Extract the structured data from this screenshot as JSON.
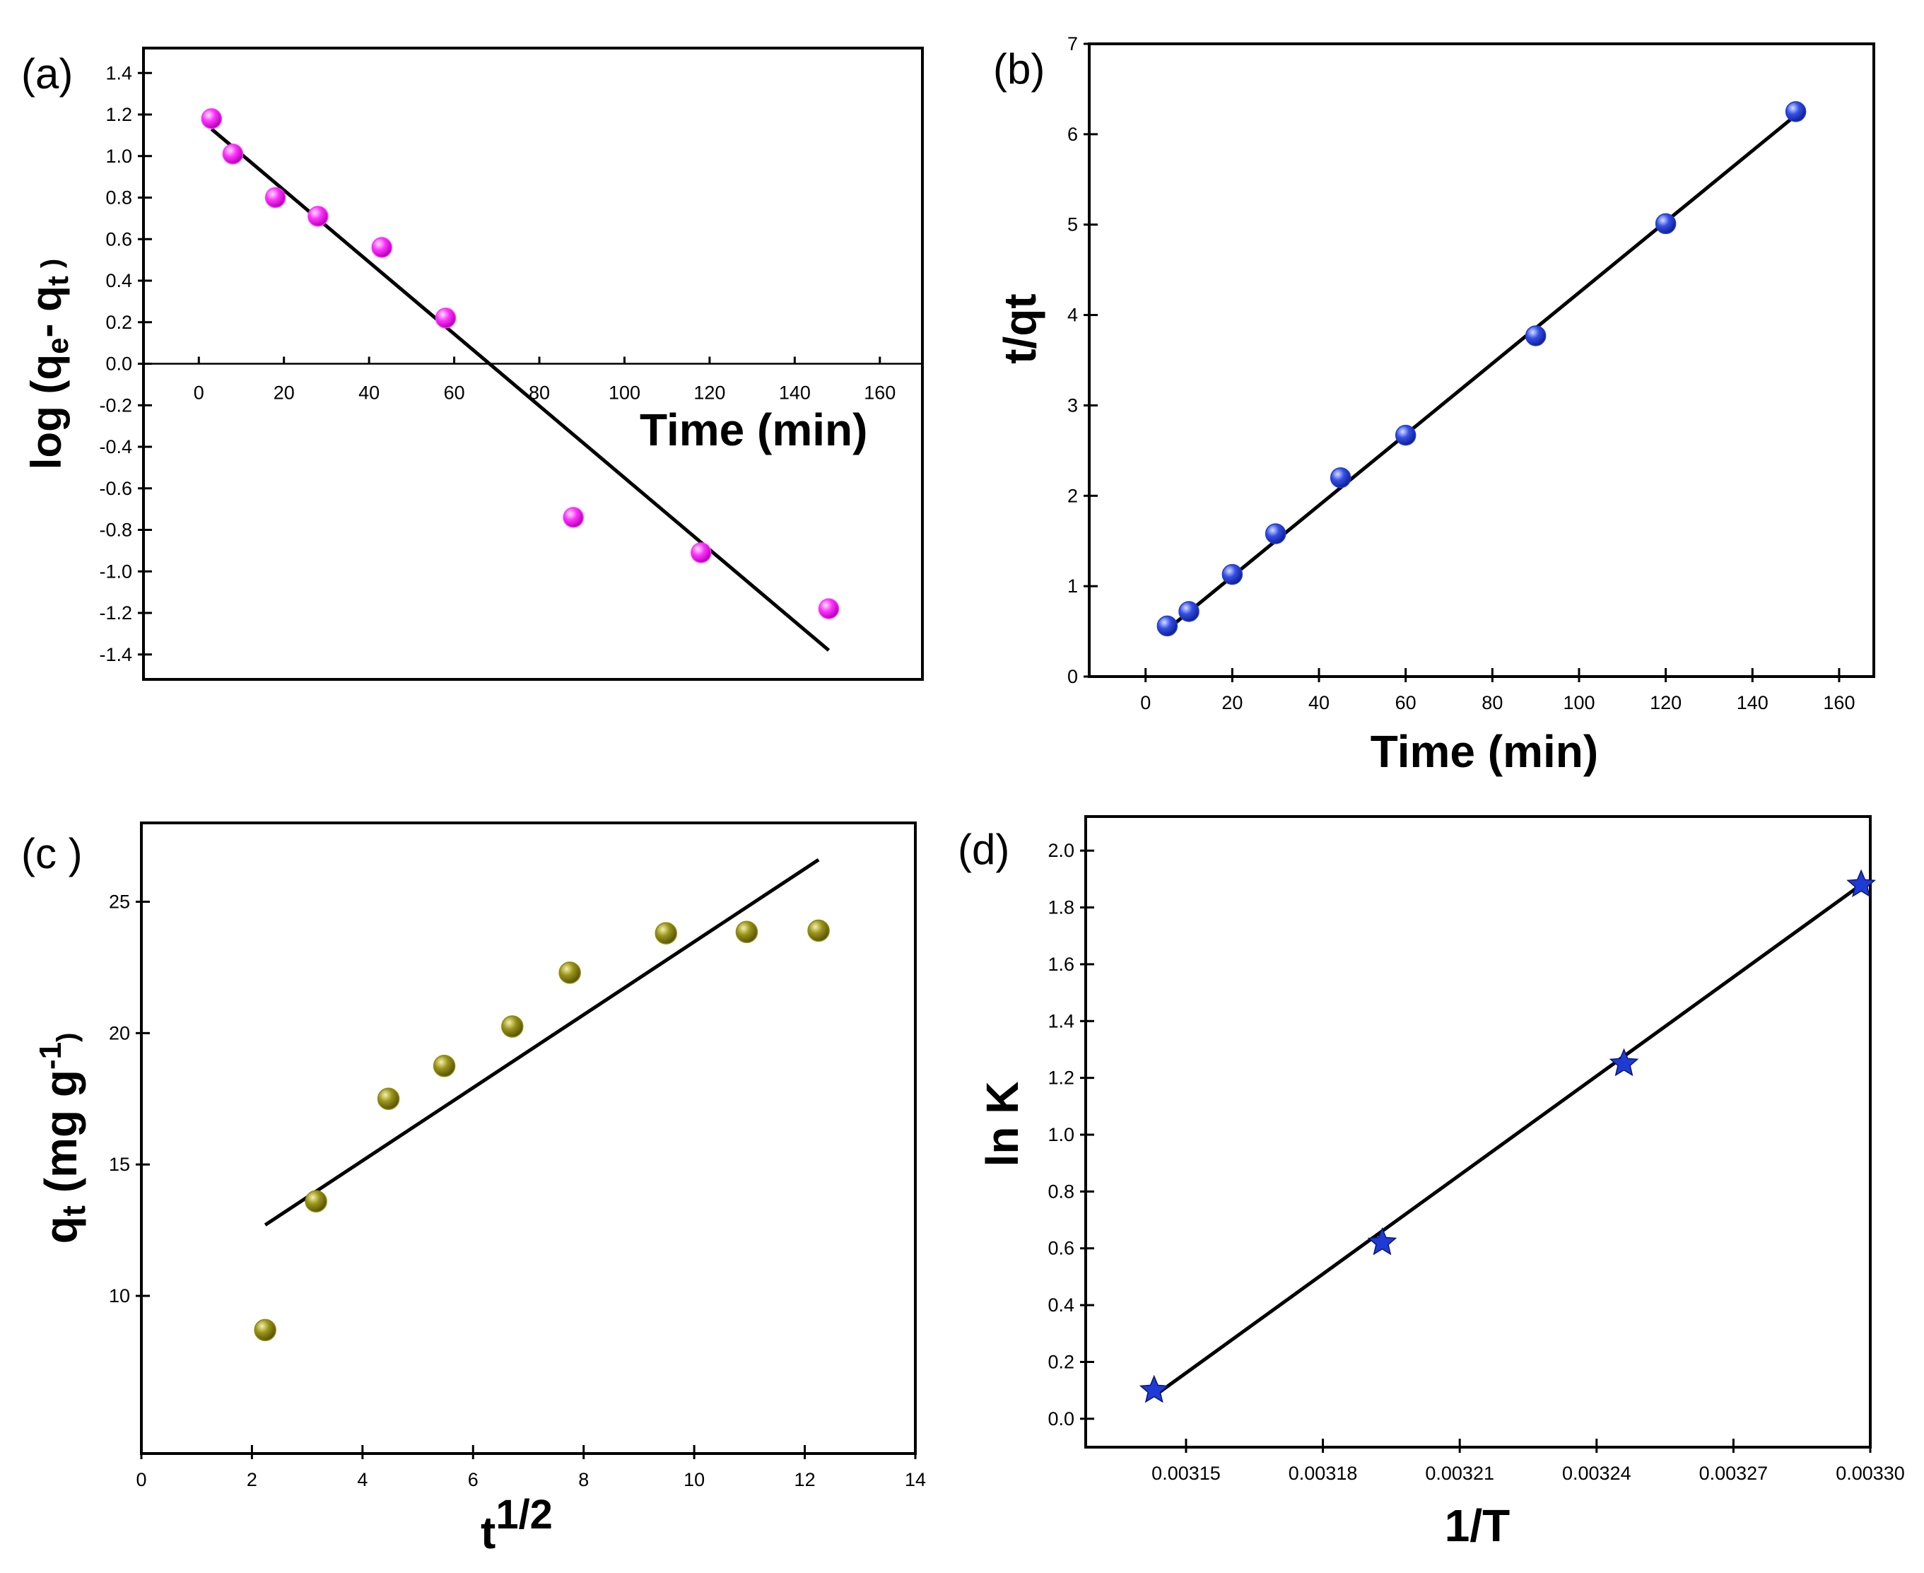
{
  "chart_data": [
    {
      "panel": "(a)",
      "type": "scatter",
      "title": "",
      "xlabel": "Time (min)",
      "ylabel_parts": {
        "prefix": "log (",
        "sub1": "q",
        "sub1_s": "e",
        "mid": "- ",
        "sub2": "q",
        "sub2_s": "t",
        "suffix": " )"
      },
      "xlim": [
        -13,
        170
      ],
      "ylim": [
        -1.52,
        1.52
      ],
      "xticks": [
        0,
        20,
        40,
        60,
        80,
        100,
        120,
        140,
        160
      ],
      "yticks": [
        -1.4,
        -1.2,
        -1.0,
        -0.8,
        -0.6,
        -0.4,
        -0.2,
        0.0,
        0.2,
        0.4,
        0.6,
        0.8,
        1.0,
        1.2,
        1.4
      ],
      "ytick_labels": [
        "-1.4",
        "-1.2",
        "-1.0",
        "-0.8",
        "-0.6",
        "-0.4",
        "-0.2",
        "0.0",
        "0.2",
        "0.4",
        "0.6",
        "0.8",
        "1.0",
        "1.2",
        "1.4"
      ],
      "marker_color": "#ff33ff",
      "marker": "circle",
      "points": [
        [
          3,
          1.18
        ],
        [
          8,
          1.01
        ],
        [
          18,
          0.8
        ],
        [
          28,
          0.71
        ],
        [
          43,
          0.56
        ],
        [
          58,
          0.22
        ],
        [
          88,
          -0.74
        ],
        [
          118,
          -0.91
        ],
        [
          148,
          -1.18
        ]
      ],
      "fit": [
        [
          3,
          1.13
        ],
        [
          148,
          -1.38
        ]
      ]
    },
    {
      "panel": "(b)",
      "type": "scatter",
      "title": "",
      "xlabel": "Time (min)",
      "ylabel": "t/qt",
      "xlim": [
        -13,
        168
      ],
      "ylim": [
        0,
        7
      ],
      "xticks": [
        0,
        20,
        40,
        60,
        80,
        100,
        120,
        140,
        160
      ],
      "yticks": [
        0,
        1,
        2,
        3,
        4,
        5,
        6,
        7
      ],
      "ytick_labels": [
        "0",
        "1",
        "2",
        "3",
        "4",
        "5",
        "6",
        "7"
      ],
      "marker_color": "#1f3bd6",
      "marker": "circle",
      "points": [
        [
          5,
          0.56
        ],
        [
          10,
          0.72
        ],
        [
          20,
          1.13
        ],
        [
          30,
          1.58
        ],
        [
          45,
          2.2
        ],
        [
          60,
          2.67
        ],
        [
          90,
          3.77
        ],
        [
          120,
          5.01
        ],
        [
          150,
          6.25
        ]
      ],
      "fit": [
        [
          5,
          0.52
        ],
        [
          150,
          6.21
        ]
      ]
    },
    {
      "panel": "(c )",
      "type": "scatter",
      "title": "",
      "xlabel_base": "t",
      "xlabel_sup": "1/2",
      "ylabel_parts": {
        "base": "q",
        "sub": "t",
        "paren": " (mg g",
        "sup": "-1",
        "close": ")"
      },
      "xlim": [
        0,
        14
      ],
      "ylim": [
        4,
        28
      ],
      "xticks": [
        0,
        2,
        4,
        6,
        8,
        10,
        12,
        14
      ],
      "yticks": [
        10,
        15,
        20,
        25
      ],
      "ytick_labels": [
        "10",
        "15",
        "20",
        "25"
      ],
      "marker_color": "#8f8a10",
      "marker": "circle",
      "points": [
        [
          2.24,
          8.7
        ],
        [
          3.16,
          13.6
        ],
        [
          4.47,
          17.5
        ],
        [
          5.48,
          18.75
        ],
        [
          6.71,
          20.25
        ],
        [
          7.75,
          22.3
        ],
        [
          9.49,
          23.8
        ],
        [
          10.95,
          23.85
        ],
        [
          12.25,
          23.9
        ]
      ],
      "fit": [
        [
          2.24,
          12.7
        ],
        [
          12.25,
          26.6
        ]
      ]
    },
    {
      "panel": "(d)",
      "type": "scatter",
      "title": "",
      "xlabel": "1/T",
      "ylabel": "ln K",
      "xlim": [
        0.003128,
        0.0033
      ],
      "ylim": [
        -0.1,
        2.12
      ],
      "xticks": [
        0.00315,
        0.00318,
        0.00321,
        0.00324,
        0.00327,
        0.0033
      ],
      "xtick_labels": [
        "0.00315",
        "0.00318",
        "0.00321",
        "0.00324",
        "0.00327",
        "0.00330"
      ],
      "yticks": [
        0.0,
        0.2,
        0.4,
        0.6,
        0.8,
        1.0,
        1.2,
        1.4,
        1.6,
        1.8,
        2.0
      ],
      "ytick_labels": [
        "0.0",
        "0.2",
        "0.4",
        "0.6",
        "0.8",
        "1.0",
        "1.2",
        "1.4",
        "1.6",
        "1.8",
        "2.0"
      ],
      "marker_color": "#1f3bd6",
      "marker": "star",
      "points": [
        [
          0.003143,
          0.1
        ],
        [
          0.003193,
          0.62
        ],
        [
          0.003246,
          1.25
        ],
        [
          0.003298,
          1.88
        ]
      ],
      "fit": [
        [
          0.003143,
          0.08
        ],
        [
          0.003298,
          1.88
        ]
      ]
    }
  ]
}
